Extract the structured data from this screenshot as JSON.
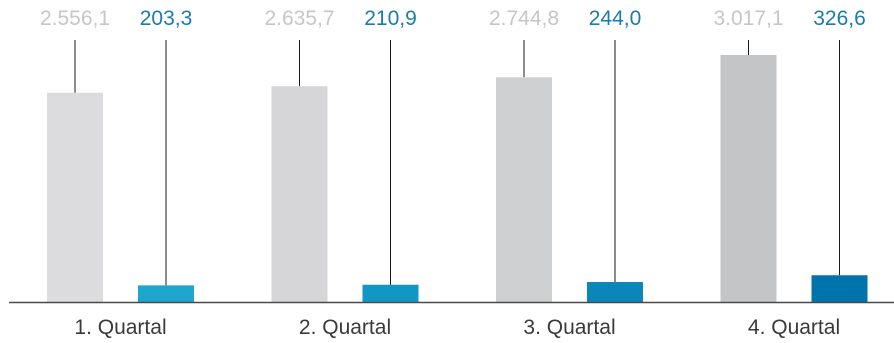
{
  "chart_data": {
    "type": "bar",
    "categories": [
      "1. Quartal",
      "2. Quartal",
      "3. Quartal",
      "4. Quartal"
    ],
    "series": [
      {
        "values": [
          2556.1,
          2635.7,
          2744.8,
          3017.1
        ],
        "labels": [
          "2.556,1",
          "2.635,7",
          "2.744,8",
          "3.017,1"
        ],
        "colors": [
          "#dcdcde",
          "#d6d6d8",
          "#cfd0d2",
          "#c4c5c7"
        ],
        "label_color": "#c4c6c8"
      },
      {
        "values": [
          203.3,
          210.9,
          244.0,
          326.6
        ],
        "labels": [
          "203,3",
          "210,9",
          "244,0",
          "326,6"
        ],
        "colors": [
          "#1ea6cf",
          "#1197c6",
          "#0a86bb",
          "#0073ad"
        ],
        "label_color": "#1a7cab"
      }
    ],
    "ylim": [
      0,
      3017.1
    ],
    "grid": false,
    "legend": "none",
    "baseline_color": "#4a4a4a",
    "category_label_color": "#3a3a3a"
  }
}
